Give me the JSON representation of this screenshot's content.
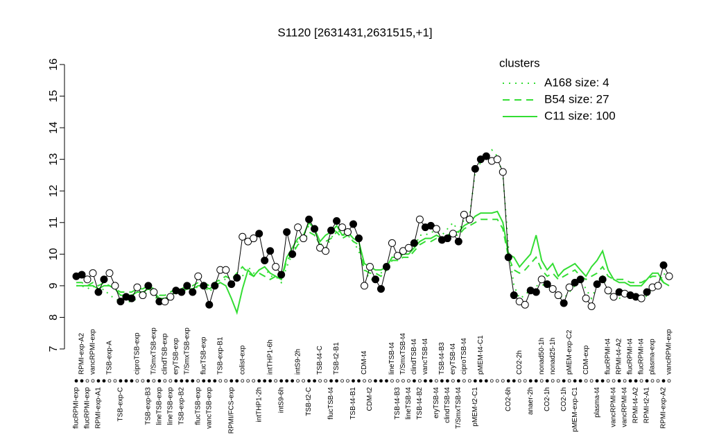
{
  "chart_data": {
    "type": "line",
    "title": "S1120 [2631431,2631515,+1]",
    "ylim": [
      7,
      16
    ],
    "yticks": [
      7,
      8,
      9,
      10,
      11,
      12,
      13,
      14,
      15,
      16
    ],
    "legend_title": "clusters",
    "legend": "top-right",
    "legend_color": "#33dd33",
    "point_color": "#000000",
    "categories": [
      "flucRPMI-exp",
      "RPMI-exp-A2",
      "flucRPMI-exp",
      "vancRPMI-exp",
      "RPMI-exp-A1",
      null,
      "TSB-exp-A",
      null,
      "TSB-exp-C",
      null,
      null,
      "ciproTSB-exp",
      null,
      "TSB-exp-B3",
      "T/SmxTSB-exp",
      "lineTSB-exp",
      "clindTSB-exp",
      "lineTSB-exp",
      "eryTSB-exp",
      "TSB-exp-B2",
      "T/SmxTSB-exp",
      null,
      "flucTSB-exp",
      "flucTSB-exp",
      "vancTSB-exp",
      null,
      "TSB-exp-B1",
      null,
      "RPMI/FCS-exp",
      null,
      "colist-exp",
      null,
      null,
      "intTHP1-2h",
      null,
      "intTHP1-6h",
      null,
      "intS9-6h",
      null,
      null,
      "intS9-2h",
      null,
      "TSB-t2-C",
      null,
      "TSB-t4-C",
      null,
      "flucTSB-t4",
      "TSB-t2-B1",
      null,
      null,
      "TSB-t4-B1",
      null,
      "CDM-t4",
      "CDM-t2",
      null,
      null,
      null,
      "lineTSB-t4",
      "TSB-t4-B3",
      "T/SmxTSB-t4",
      "lineTSB-t4",
      "clindTSB-t4",
      "TSB-t4-B2",
      "vancTSB-t4",
      null,
      "eryTSB-t4",
      "TSB-t4-B3",
      "clindTSB-t4",
      "eryTSB-t4",
      "T/SmxTSB-t4",
      "ciproTSB-t4",
      null,
      "pMEM-t2-C1",
      "pMEM-t4-C1",
      null,
      null,
      null,
      null,
      "CO2-6h",
      null,
      "CO2-2h",
      null,
      "anaer-2h",
      null,
      "nonad50-1h",
      "CO2-1h",
      "nonad25-1h",
      null,
      "CO2-1h",
      "pMEM-exp-C2",
      "pMEM-exp-C1",
      null,
      "CDM-exp",
      null,
      "plasma-t4",
      null,
      "flucRPMI-t4",
      "vancRPMI-t4",
      "RPMI-t4-A2",
      "vancRPMI-t4",
      "flucRPMI-t4",
      "RPMI-t4-A2",
      "flucRPMI-t4",
      "RPMI-t2-A1",
      "plasma-exp",
      null,
      "RPMI-exp-A2",
      "vancRPMI-exp"
    ],
    "values": [
      9.3,
      9.35,
      9.2,
      9.4,
      8.8,
      9.2,
      9.4,
      9.0,
      8.5,
      8.65,
      8.6,
      8.95,
      8.7,
      9.0,
      8.8,
      8.5,
      8.5,
      8.65,
      8.85,
      8.8,
      9.0,
      8.8,
      9.3,
      9.0,
      8.4,
      9.0,
      9.5,
      9.5,
      9.05,
      9.25,
      10.55,
      10.4,
      10.5,
      10.65,
      9.8,
      10.1,
      9.6,
      9.35,
      10.7,
      10.0,
      10.85,
      10.5,
      11.1,
      10.8,
      10.2,
      10.1,
      10.75,
      11.05,
      10.85,
      10.7,
      10.95,
      10.5,
      9.0,
      9.6,
      9.2,
      8.9,
      9.6,
      10.35,
      9.95,
      10.1,
      10.2,
      10.35,
      11.1,
      10.85,
      10.9,
      10.8,
      10.45,
      10.5,
      10.65,
      10.4,
      11.25,
      11.1,
      12.7,
      13.0,
      13.1,
      12.95,
      13.0,
      12.6,
      9.9,
      8.7,
      8.5,
      8.4,
      8.85,
      8.8,
      9.2,
      9.05,
      8.9,
      8.7,
      8.45,
      8.95,
      9.1,
      9.2,
      8.6,
      8.35,
      9.05,
      9.2,
      8.85,
      8.65,
      8.8,
      8.75,
      8.7,
      8.65,
      8.6,
      8.8,
      8.95,
      9.0,
      9.65,
      9.3
    ],
    "filled": [
      true,
      true,
      false,
      false,
      true,
      true,
      false,
      false,
      true,
      true,
      true,
      false,
      false,
      true,
      false,
      true,
      false,
      false,
      true,
      true,
      true,
      true,
      false,
      true,
      true,
      true,
      false,
      false,
      true,
      true,
      false,
      false,
      false,
      true,
      true,
      true,
      false,
      true,
      true,
      true,
      false,
      false,
      true,
      true,
      false,
      false,
      true,
      true,
      false,
      false,
      true,
      true,
      false,
      false,
      true,
      true,
      true,
      false,
      false,
      false,
      false,
      true,
      false,
      true,
      true,
      false,
      true,
      true,
      false,
      true,
      false,
      false,
      true,
      true,
      true,
      false,
      false,
      false,
      true,
      true,
      false,
      false,
      true,
      true,
      false,
      true,
      false,
      false,
      true,
      false,
      true,
      true,
      false,
      false,
      true,
      true,
      false,
      false,
      true,
      false,
      true,
      true,
      false,
      true,
      false,
      false,
      true,
      false
    ],
    "series": [
      {
        "name": "A168 size: 4",
        "color": "#33dd33",
        "linestyle": "dotted",
        "values": [
          9.0,
          9.0,
          8.9,
          9.0,
          8.8,
          8.9,
          8.7,
          8.6,
          8.5,
          8.5,
          8.5,
          8.6,
          8.7,
          8.8,
          8.7,
          8.5,
          8.5,
          8.6,
          8.8,
          8.8,
          8.9,
          8.8,
          9.0,
          9.0,
          8.8,
          9.0,
          9.2,
          9.2,
          9.0,
          9.2,
          9.3,
          9.6,
          9.4,
          9.5,
          9.6,
          9.3,
          9.3,
          9.1,
          9.6,
          10.0,
          10.4,
          10.6,
          10.9,
          10.8,
          10.1,
          10.2,
          10.5,
          10.8,
          10.6,
          10.6,
          10.4,
          10.1,
          9.5,
          9.2,
          9.2,
          9.4,
          9.6,
          9.9,
          9.8,
          10.0,
          10.0,
          10.2,
          10.6,
          10.6,
          10.7,
          10.7,
          10.6,
          10.8,
          11.0,
          10.7,
          11.1,
          11.2,
          12.6,
          12.9,
          13.1,
          13.3,
          13.1,
          12.5,
          10.2,
          9.0,
          8.6,
          8.7,
          8.9,
          9.0,
          9.0,
          9.1,
          8.9,
          8.7,
          8.6,
          8.8,
          9.0,
          9.2,
          8.9,
          8.6,
          9.0,
          9.3,
          8.8,
          8.6,
          8.6,
          8.7,
          8.7,
          8.6,
          8.5,
          8.7,
          8.9,
          9.0,
          9.4,
          9.2
        ]
      },
      {
        "name": "B54 size: 27",
        "color": "#33dd33",
        "linestyle": "dashed",
        "values": [
          9.1,
          9.1,
          9.0,
          9.1,
          9.0,
          9.1,
          9.0,
          8.9,
          8.8,
          8.8,
          8.8,
          8.9,
          8.9,
          9.0,
          8.9,
          8.7,
          8.7,
          8.8,
          8.9,
          8.9,
          9.0,
          9.0,
          9.1,
          9.1,
          9.0,
          9.1,
          9.2,
          9.3,
          9.2,
          9.4,
          9.6,
          9.4,
          9.3,
          9.4,
          9.3,
          9.2,
          9.3,
          9.2,
          9.8,
          10.0,
          10.3,
          10.4,
          10.7,
          10.6,
          10.3,
          10.4,
          10.5,
          10.7,
          10.5,
          10.6,
          10.4,
          10.3,
          9.5,
          9.4,
          9.4,
          9.3,
          9.5,
          9.8,
          9.8,
          9.9,
          9.9,
          10.1,
          10.3,
          10.4,
          10.4,
          10.5,
          10.4,
          10.5,
          10.6,
          10.6,
          10.8,
          10.9,
          11.0,
          11.1,
          11.1,
          11.1,
          11.1,
          10.8,
          9.9,
          9.5,
          9.4,
          9.5,
          9.7,
          9.9,
          9.5,
          9.3,
          9.4,
          9.2,
          9.3,
          9.4,
          9.5,
          9.3,
          9.2,
          9.3,
          9.4,
          9.6,
          9.3,
          9.2,
          9.2,
          9.2,
          9.1,
          9.1,
          9.1,
          9.2,
          9.3,
          9.3,
          9.1,
          9.0
        ]
      },
      {
        "name": "C11 size: 100",
        "color": "#33dd33",
        "linestyle": "solid",
        "values": [
          9.0,
          9.0,
          9.0,
          9.0,
          8.9,
          9.0,
          9.0,
          8.9,
          8.7,
          8.7,
          8.7,
          8.8,
          8.8,
          8.9,
          8.8,
          8.6,
          8.6,
          8.7,
          8.8,
          8.8,
          8.9,
          8.9,
          9.0,
          9.0,
          8.9,
          9.0,
          9.1,
          9.0,
          8.6,
          8.15,
          8.9,
          9.5,
          9.3,
          9.5,
          9.6,
          9.4,
          9.3,
          9.2,
          9.9,
          10.2,
          10.5,
          10.6,
          11.0,
          10.8,
          10.4,
          10.6,
          10.7,
          10.9,
          10.6,
          10.7,
          10.5,
          10.4,
          9.7,
          9.6,
          9.5,
          9.5,
          9.6,
          9.9,
          9.9,
          10.0,
          10.0,
          10.2,
          10.4,
          10.5,
          10.5,
          10.6,
          10.5,
          10.6,
          10.7,
          10.7,
          10.9,
          11.0,
          11.2,
          11.3,
          11.3,
          11.3,
          11.35,
          11.0,
          10.0,
          9.9,
          9.6,
          9.8,
          10.0,
          10.6,
          9.8,
          9.5,
          9.7,
          9.3,
          9.5,
          9.6,
          9.7,
          9.5,
          9.3,
          9.6,
          9.8,
          10.1,
          9.5,
          9.2,
          9.1,
          9.1,
          9.0,
          9.0,
          9.0,
          9.2,
          9.4,
          9.4,
          9.1,
          9.0
        ]
      }
    ]
  }
}
